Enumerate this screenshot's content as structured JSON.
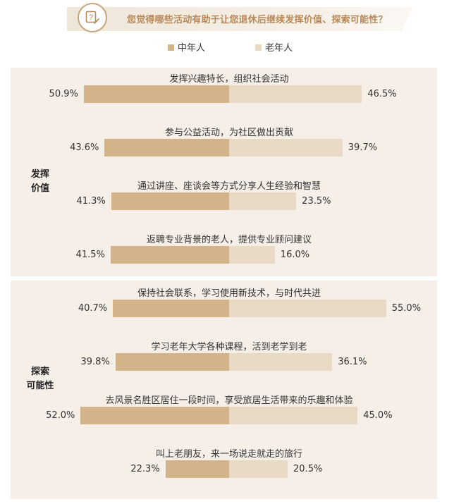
{
  "title": "您觉得哪些活动有助于让您退休后继续发挥价值、探索可能性？",
  "colors": {
    "middle_aged": "#d3b48a",
    "elderly": "#e8dac5",
    "panel": "#f5efe8",
    "accent": "#c9a57a"
  },
  "icon": "question-edit-icon",
  "chart_data": {
    "type": "bar",
    "title": "您觉得哪些活动有助于让您退休后继续发挥价值、探索可能性？",
    "orientation": "horizontal-diverging",
    "unit": "%",
    "legend": {
      "placement": "top-center",
      "entries": [
        "中年人",
        "老年人"
      ]
    },
    "series": [
      {
        "name": "中年人",
        "values": [
          50.9,
          43.6,
          41.3,
          41.5,
          40.7,
          39.8,
          52.0,
          22.3
        ]
      },
      {
        "name": "老年人",
        "values": [
          46.5,
          39.7,
          23.5,
          16.0,
          55.0,
          36.1,
          45.0,
          20.5
        ]
      }
    ],
    "categories": [
      "发挥兴趣特长，组织社会活动",
      "参与公益活动，为社区做出贡献",
      "通过讲座、座谈会等方式分享人生经验和智慧",
      "返聘专业背景的老人，提供专业顾问建议",
      "保持社会联系，学习使用新技术，与时代共进",
      "学习老年大学各种课程，活到老学到老",
      "去风景名胜区居住一段时间，享受旅居生活带来的乐趣和体验",
      "叫上老朋友，来一场说走就走的旅行"
    ],
    "groups": [
      {
        "label_line1": "发挥",
        "label_line2": "价值",
        "indices": [
          0,
          1,
          2,
          3
        ]
      },
      {
        "label_line1": "探索",
        "label_line2": "可能性",
        "indices": [
          4,
          5,
          6,
          7
        ]
      }
    ],
    "value_labels": [
      {
        "left": "50.9%",
        "right": "46.5%"
      },
      {
        "left": "43.6%",
        "right": "39.7%"
      },
      {
        "left": "41.3%",
        "right": "23.5%"
      },
      {
        "left": "41.5%",
        "right": "16.0%"
      },
      {
        "left": "40.7%",
        "right": "55.0%"
      },
      {
        "left": "39.8%",
        "right": "36.1%"
      },
      {
        "left": "52.0%",
        "right": "45.0%"
      },
      {
        "left": "22.3%",
        "right": "20.5%"
      }
    ],
    "xlim": [
      -60,
      60
    ]
  }
}
